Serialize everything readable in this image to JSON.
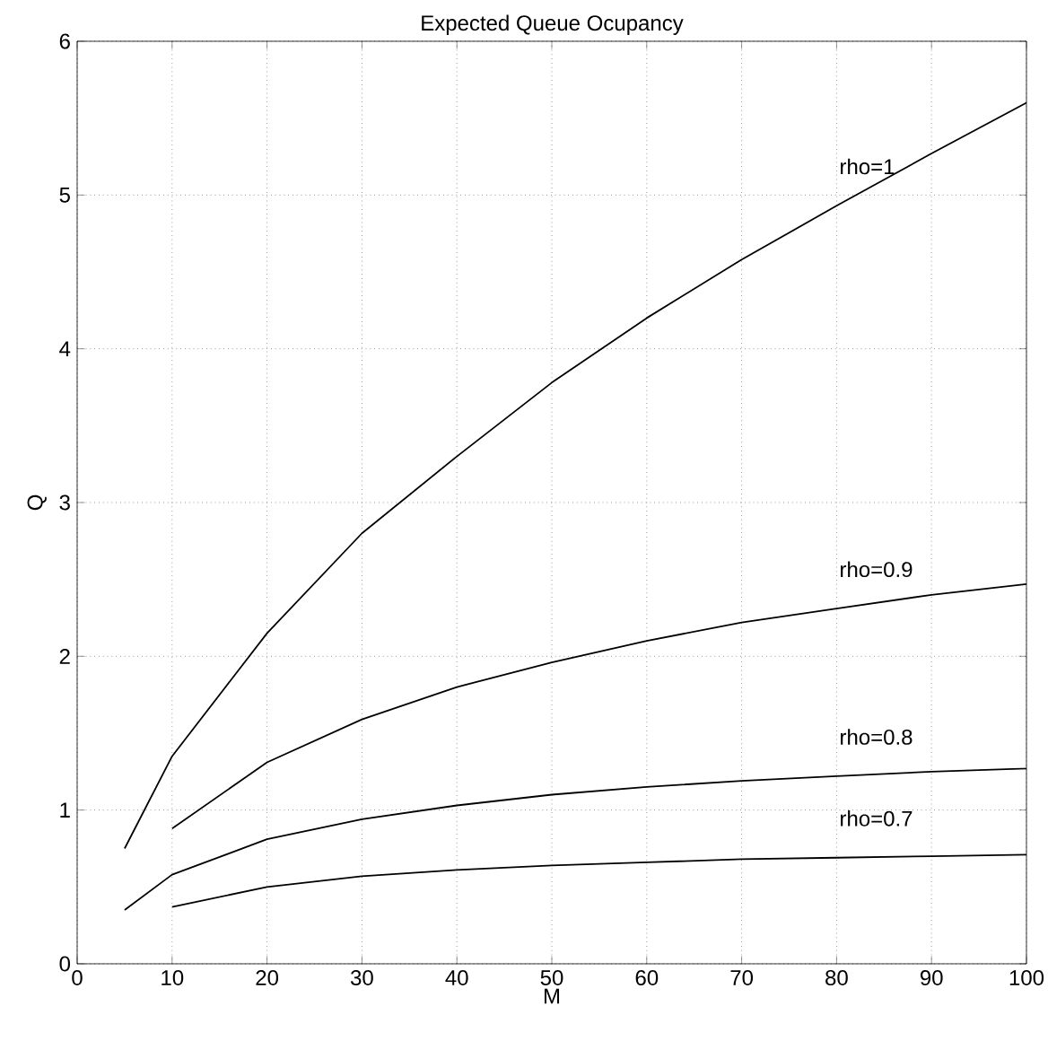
{
  "chart_data": {
    "type": "line",
    "title": "Expected Queue Ocupancy",
    "xlabel": "M",
    "ylabel": "Q",
    "xlim": [
      0,
      100
    ],
    "xticks": [
      0,
      10,
      20,
      30,
      40,
      50,
      60,
      70,
      80,
      90,
      100
    ],
    "ylim": [
      0,
      6
    ],
    "yticks": [
      0,
      1,
      2,
      3,
      4,
      5,
      6
    ],
    "grid": true,
    "marker": "none",
    "line_style": "solid",
    "series": [
      {
        "name": "rho=1",
        "color": "#000000",
        "x": [
          5,
          10,
          20,
          30,
          40,
          50,
          60,
          70,
          80,
          90,
          100
        ],
        "values": [
          0.75,
          1.35,
          2.15,
          2.8,
          3.3,
          3.78,
          4.2,
          4.58,
          4.93,
          5.27,
          5.6
        ]
      },
      {
        "name": "rho=0.9",
        "color": "#000000",
        "x": [
          10,
          20,
          30,
          40,
          50,
          60,
          70,
          80,
          90,
          100
        ],
        "values": [
          0.88,
          1.31,
          1.59,
          1.8,
          1.96,
          2.1,
          2.22,
          2.31,
          2.4,
          2.47
        ]
      },
      {
        "name": "rho=0.8",
        "color": "#000000",
        "x": [
          5,
          10,
          20,
          30,
          40,
          50,
          60,
          70,
          80,
          90,
          100
        ],
        "values": [
          0.35,
          0.58,
          0.81,
          0.94,
          1.03,
          1.1,
          1.15,
          1.19,
          1.22,
          1.25,
          1.27
        ]
      },
      {
        "name": "rho=0.7",
        "color": "#000000",
        "x": [
          10,
          20,
          30,
          40,
          50,
          60,
          70,
          80,
          90,
          100
        ],
        "values": [
          0.37,
          0.5,
          0.57,
          0.61,
          0.64,
          0.66,
          0.68,
          0.69,
          0.7,
          0.71
        ]
      }
    ]
  }
}
